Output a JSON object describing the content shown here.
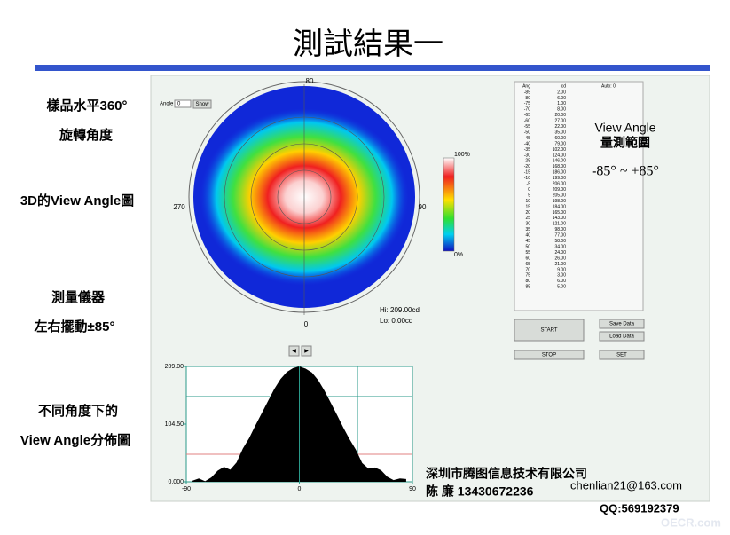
{
  "title": "測試結果一",
  "left_labels": [
    "樣品水平360°",
    "旋轉角度",
    "3D的View Angle圖",
    "測量儀器",
    "左右擺動±85°",
    "不同角度下的",
    "View Angle分佈圖"
  ],
  "controls": {
    "angle_label": "Angle",
    "angle_value": "0",
    "show_button": "Show",
    "arrows": [
      "◀",
      "▶"
    ]
  },
  "polar": {
    "labels": {
      "top": "80",
      "left": "270",
      "right": "90",
      "bottom": "0"
    },
    "colorbar": {
      "max": "100%",
      "min": "0%"
    },
    "hi": "Hi: 209.00cd",
    "lo": "Lo: 0.00cd"
  },
  "table": {
    "header": [
      "Ang",
      "cd",
      "Auto: 0"
    ],
    "rows": [
      [
        "-85",
        "2.00"
      ],
      [
        "-80",
        "6.00"
      ],
      [
        "-75",
        "1.00"
      ],
      [
        "-70",
        "8.00"
      ],
      [
        "-65",
        "20.00"
      ],
      [
        "-60",
        "27.00"
      ],
      [
        "-55",
        "22.00"
      ],
      [
        "-50",
        "35.00"
      ],
      [
        "-45",
        "60.00"
      ],
      [
        "-40",
        "79.00"
      ],
      [
        "-35",
        "102.00"
      ],
      [
        "-30",
        "124.00"
      ],
      [
        "-25",
        "146.00"
      ],
      [
        "-20",
        "168.00"
      ],
      [
        "-15",
        "186.00"
      ],
      [
        "-10",
        "199.00"
      ],
      [
        "-5",
        "206.00"
      ],
      [
        "0",
        "209.00"
      ],
      [
        "5",
        "205.00"
      ],
      [
        "10",
        "198.00"
      ],
      [
        "15",
        "184.00"
      ],
      [
        "20",
        "165.00"
      ],
      [
        "25",
        "143.00"
      ],
      [
        "30",
        "121.00"
      ],
      [
        "35",
        "98.00"
      ],
      [
        "40",
        "77.00"
      ],
      [
        "45",
        "58.00"
      ],
      [
        "50",
        "34.00"
      ],
      [
        "55",
        "24.00"
      ],
      [
        "60",
        "26.00"
      ],
      [
        "65",
        "21.00"
      ],
      [
        "70",
        "9.00"
      ],
      [
        "75",
        "3.00"
      ],
      [
        "80",
        "6.00"
      ],
      [
        "85",
        "5.00"
      ]
    ]
  },
  "range_title": [
    "View Angle",
    "量測範圍"
  ],
  "range_value": "-85° ~ +85°",
  "buttons": {
    "start": "START",
    "save": "Save Data",
    "load": "Load Data",
    "stop": "STOP",
    "set": "SET"
  },
  "plot": {
    "yticks": [
      {
        "value": 209,
        "label": "209.00"
      },
      {
        "value": 104.5,
        "label": "104.50"
      },
      {
        "value": 0,
        "label": "0.000"
      }
    ],
    "xticks": [
      -90,
      0,
      90
    ],
    "xlim": [
      -90,
      90
    ],
    "ylim": [
      0,
      209
    ]
  },
  "footer": {
    "company": "深圳市腾图信息技术有限公司",
    "contact": "陈  廉   13430672236",
    "email": "chenlian21@163.com",
    "qq": "QQ:569192379",
    "watermark": "OECR.com"
  }
}
